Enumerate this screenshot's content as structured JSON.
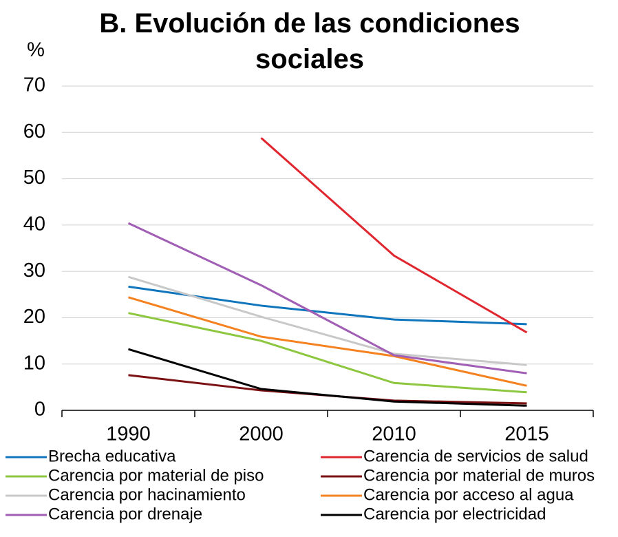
{
  "chart_data": {
    "type": "line",
    "title": "B. Evolución de las condiciones sociales",
    "y_label": "%",
    "categories": [
      "1990",
      "2000",
      "2010",
      "2015"
    ],
    "ylim": [
      0,
      70
    ],
    "yticks": [
      0,
      10,
      20,
      30,
      40,
      50,
      60,
      70
    ],
    "grid": true,
    "series": [
      {
        "name": "Brecha educativa",
        "color": "#0f75bc",
        "values": [
          26.7,
          22.6,
          19.6,
          18.6
        ]
      },
      {
        "name": "Carencia de servicios de salud",
        "color": "#e0262e",
        "values": [
          null,
          58.8,
          33.4,
          16.8
        ]
      },
      {
        "name": "Carencia por material de piso",
        "color": "#8dc63f",
        "values": [
          21,
          15,
          5.9,
          3.9
        ]
      },
      {
        "name": "Carencia por material de muros",
        "color": "#7b1113",
        "values": [
          7.6,
          4.3,
          2.1,
          1.5
        ]
      },
      {
        "name": "Carencia por hacinamiento",
        "color": "#c8c8c8",
        "values": [
          28.8,
          20.2,
          12.2,
          9.8
        ]
      },
      {
        "name": "Carencia por acceso al agua",
        "color": "#f58220",
        "values": [
          24.4,
          15.9,
          11.7,
          5.3
        ]
      },
      {
        "name": "Carencia por drenaje",
        "color": "#a05eb5",
        "values": [
          40.4,
          27,
          11.9,
          8
        ]
      },
      {
        "name": "Carencia por electricidad",
        "color": "#000000",
        "values": [
          13.2,
          4.6,
          1.9,
          1
        ]
      }
    ]
  }
}
